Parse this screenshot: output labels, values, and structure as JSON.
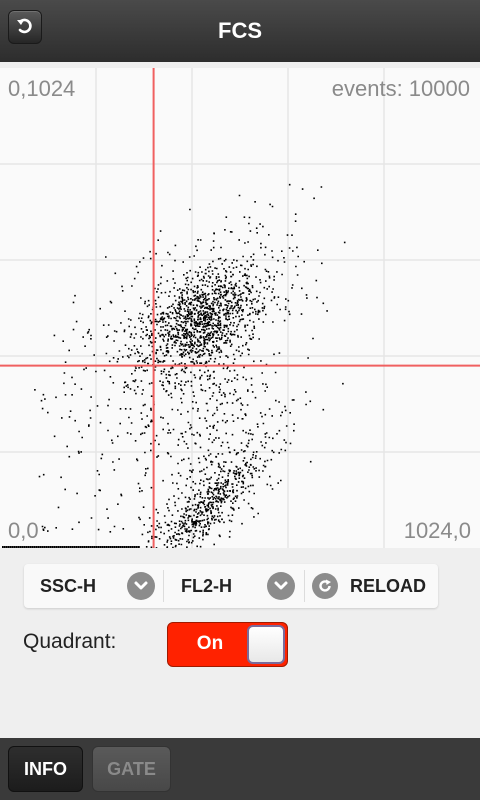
{
  "header": {
    "title": "FCS",
    "back_icon": "undo-arrow-icon"
  },
  "plot": {
    "corner_top_left": "0,1024",
    "events_label": "events: 10000",
    "corner_bottom_left": "0,0",
    "corner_bottom_right": "1024,0",
    "quadrant_x": 0.32,
    "quadrant_y": 0.62,
    "crosshair_color": "#f06060",
    "grid_color": "#e6e6e6",
    "dot_color": "#000000"
  },
  "toolbar": {
    "x_param": "SSC-H",
    "y_param": "FL2-H",
    "reload_label": "RELOAD",
    "dropdown_icon": "chevron-down-icon",
    "reload_icon": "refresh-icon"
  },
  "quadrant": {
    "label": "Quadrant:",
    "toggle_label": "On",
    "state": true,
    "accent": "#ff2200"
  },
  "bottom_tabs": [
    {
      "label": "INFO",
      "active": true
    },
    {
      "label": "GATE",
      "active": false
    }
  ]
}
